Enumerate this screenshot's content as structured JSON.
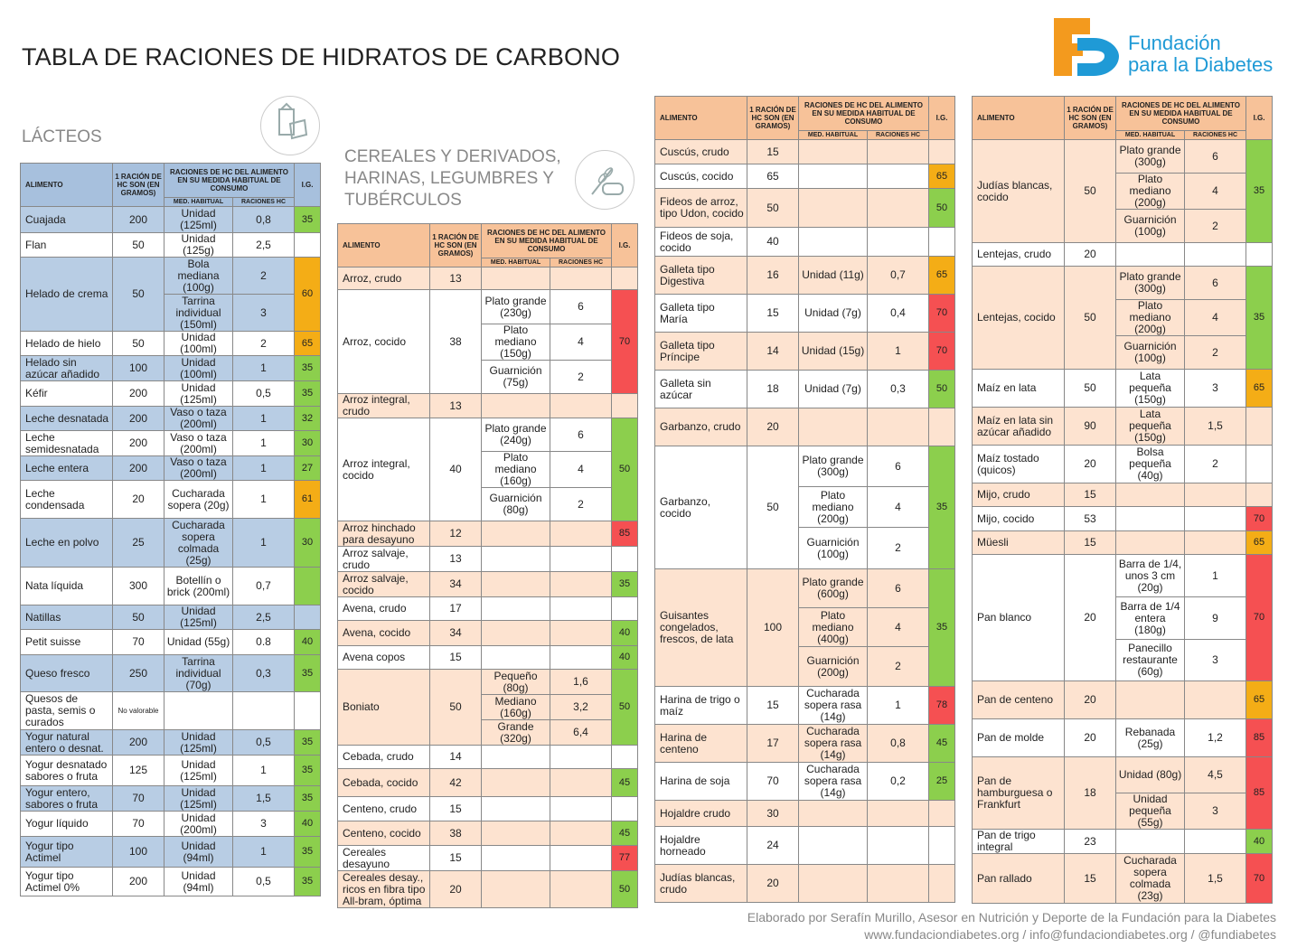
{
  "title": "TABLA DE RACIONES DE HIDRATOS DE CARBONO",
  "brand": {
    "line1": "Fundación",
    "line2": "para la Diabetes",
    "orange": "#f39a1e",
    "blue": "#1f9ad6"
  },
  "headers": {
    "alimento": "ALIMENTO",
    "racion": "1 RACIÓN DE HC SON (EN GRAMOS)",
    "raciones": "RACIONES DE HC DEL ALIMENTO EN SU MEDIDA HABITUAL DE CONSUMO",
    "ig": "I.G.",
    "med": "MED. HABITUAL",
    "rac": "RACIONES HC"
  },
  "sections": {
    "lacteos": "LÁCTEOS",
    "cereales": "CEREALES Y DERIVADOS, HARINAS, LEGUMBRES Y TUBÉRCULOS"
  },
  "icons": [
    "dairy-icon",
    "wheat-bread-icon"
  ],
  "colors": {
    "green": "#8ccf4d",
    "yellow": "#f4ad16",
    "red": "#f55052",
    "blue_header": "#a7c0dd",
    "orange_header": "#f7c299"
  },
  "footer": {
    "line1": "Elaborado por Serafín Murillo, Asesor en Nutrición y Deporte de la Fundación para la Diabetes",
    "line2": "www.fundaciondiabetes.org / info@fundaciondiabetes.org / @fundiabetes"
  },
  "tables": [
    {
      "rows": [
        {
          "n": "Cuajada",
          "g": "200",
          "m": [
            [
              "Unidad (125ml)",
              "0,8"
            ]
          ],
          "ig": "35",
          "c": "g",
          "h": 29
        },
        {
          "n": "Flan",
          "g": "50",
          "m": [
            [
              "Unidad (125g)",
              "2,5"
            ]
          ],
          "ig": "",
          "c": "",
          "h": 27
        },
        {
          "n": "Helado de crema",
          "g": "50",
          "m": [
            [
              "Bola mediana (100g)",
              "2"
            ],
            [
              "Tarrina individual (150ml)",
              "3"
            ]
          ],
          "ig": "60",
          "c": "y",
          "h": 82
        },
        {
          "n": "Helado de hielo",
          "g": "50",
          "m": [
            [
              "Unidad (100ml)",
              "2"
            ]
          ],
          "ig": "65",
          "c": "y",
          "h": 27
        },
        {
          "n": "Helado sin azúcar añadido",
          "g": "100",
          "m": [
            [
              "Unidad (100ml)",
              "1"
            ]
          ],
          "ig": "35",
          "c": "g",
          "h": 28
        },
        {
          "n": "Kéfir",
          "g": "200",
          "m": [
            [
              "Unidad (125ml)",
              "0,5"
            ]
          ],
          "ig": "35",
          "c": "g",
          "h": 28
        },
        {
          "n": "Leche desnatada",
          "g": "200",
          "m": [
            [
              "Vaso o taza (200ml)",
              "1"
            ]
          ],
          "ig": "32",
          "c": "g",
          "h": 27
        },
        {
          "n": "Leche semidesnatada",
          "g": "200",
          "m": [
            [
              "Vaso o taza (200ml)",
              "1"
            ]
          ],
          "ig": "30",
          "c": "g",
          "h": 28
        },
        {
          "n": "Leche entera",
          "g": "200",
          "m": [
            [
              "Vaso o taza (200ml)",
              "1"
            ]
          ],
          "ig": "27",
          "c": "g",
          "h": 27
        },
        {
          "n": "Leche condensada",
          "g": "20",
          "m": [
            [
              "Cucharada sopera (20g)",
              "1"
            ]
          ],
          "ig": "61",
          "c": "y",
          "h": 42
        },
        {
          "n": "Leche en polvo",
          "g": "25",
          "m": [
            [
              "Cucharada sopera colmada (25g)",
              "1"
            ]
          ],
          "ig": "30",
          "c": "g",
          "h": 54
        },
        {
          "n": "Nata líquida",
          "g": "300",
          "m": [
            [
              "Botellín o brick (200ml)",
              "0,7"
            ]
          ],
          "ig": "",
          "c": "g",
          "h": 42
        },
        {
          "n": "Natillas",
          "g": "50",
          "m": [
            [
              "Unidad (125ml)",
              "2,5"
            ]
          ],
          "ig": "",
          "c": "",
          "h": 27
        },
        {
          "n": "Petit suisse",
          "g": "70",
          "m": [
            [
              "Unidad (55g)",
              "0.8"
            ]
          ],
          "ig": "40",
          "c": "g",
          "h": 28
        },
        {
          "n": "Queso fresco",
          "g": "250",
          "m": [
            [
              "Tarrina individual (70g)",
              "0,3"
            ]
          ],
          "ig": "35",
          "c": "g",
          "h": 41
        },
        {
          "n": "Quesos de pasta, semis o curados",
          "g": "No valorable",
          "m": [
            [
              "",
              ""
            ]
          ],
          "ig": "",
          "c": "",
          "h": 42
        },
        {
          "n": "Yogur natural entero o desnat.",
          "g": "200",
          "m": [
            [
              "Unidad (125ml)",
              "0,5"
            ]
          ],
          "ig": "35",
          "c": "g",
          "h": 28
        },
        {
          "n": "Yogur desnatado sabores o fruta",
          "g": "125",
          "m": [
            [
              "Unidad (125ml)",
              "1"
            ]
          ],
          "ig": "35",
          "c": "g",
          "h": 34
        },
        {
          "n": "Yogur entero, sabores o fruta",
          "g": "70",
          "m": [
            [
              "Unidad (125ml)",
              "1,5"
            ]
          ],
          "ig": "35",
          "c": "g",
          "h": 28
        },
        {
          "n": "Yogur líquido",
          "g": "70",
          "m": [
            [
              "Unidad (200ml)",
              "3"
            ]
          ],
          "ig": "40",
          "c": "g",
          "h": 28
        },
        {
          "n": "Yogur tipo Actimel",
          "g": "100",
          "m": [
            [
              "Unidad (94ml)",
              "1"
            ]
          ],
          "ig": "35",
          "c": "g",
          "h": 34
        },
        {
          "n": "Yogur tipo Actimel 0%",
          "g": "200",
          "m": [
            [
              "Unidad (94ml)",
              "0,5"
            ]
          ],
          "ig": "35",
          "c": "g",
          "h": 32
        }
      ]
    },
    {
      "rows": [
        {
          "n": "Arroz, crudo",
          "g": "13",
          "m": [
            [
              "",
              ""
            ]
          ],
          "ig": "",
          "c": "",
          "h": 25
        },
        {
          "n": "Arroz, cocido",
          "g": "38",
          "m": [
            [
              "Plato grande (230g)",
              "6"
            ],
            [
              "Plato mediano (150g)",
              "4"
            ],
            [
              "Guarnición (75g)",
              "2"
            ]
          ],
          "ig": "70",
          "c": "r",
          "h": 113
        },
        {
          "n": "Arroz integral, crudo",
          "g": "13",
          "m": [
            [
              "",
              ""
            ]
          ],
          "ig": "",
          "c": "",
          "h": 26
        },
        {
          "n": "Arroz integral, cocido",
          "g": "40",
          "m": [
            [
              "Plato grande (240g)",
              "6"
            ],
            [
              "Plato mediano (160g)",
              "4"
            ],
            [
              "Guarnición (80g)",
              "2"
            ]
          ],
          "ig": "50",
          "c": "g",
          "h": 111
        },
        {
          "n": "Arroz hinchado para desayuno",
          "g": "12",
          "m": [
            [
              "",
              ""
            ]
          ],
          "ig": "85",
          "c": "r",
          "h": 28
        },
        {
          "n": "Arroz salvaje, crudo",
          "g": "13",
          "m": [
            [
              "",
              ""
            ]
          ],
          "ig": "",
          "c": "",
          "h": 28
        },
        {
          "n": "Arroz salvaje, cocido",
          "g": "34",
          "m": [
            [
              "",
              ""
            ]
          ],
          "ig": "35",
          "c": "g",
          "h": 28
        },
        {
          "n": "Avena, crudo",
          "g": "17",
          "m": [
            [
              "",
              ""
            ]
          ],
          "ig": "",
          "c": "",
          "h": 26
        },
        {
          "n": "Avena, cocido",
          "g": "34",
          "m": [
            [
              "",
              ""
            ]
          ],
          "ig": "40",
          "c": "g",
          "h": 28
        },
        {
          "n": "Avena copos",
          "g": "15",
          "m": [
            [
              "",
              ""
            ]
          ],
          "ig": "40",
          "c": "g",
          "h": 26
        },
        {
          "n": "Boniato",
          "g": "50",
          "m": [
            [
              "Pequeño (80g)",
              "1,6"
            ],
            [
              "Mediano (160g)",
              "3,2"
            ],
            [
              "Grande (320g)",
              "6,4"
            ]
          ],
          "ig": "50",
          "c": "g",
          "h": 84
        },
        {
          "n": "Cebada, crudo",
          "g": "14",
          "m": [
            [
              "",
              ""
            ]
          ],
          "ig": "",
          "c": "",
          "h": 26
        },
        {
          "n": "Cebada, cocido",
          "g": "42",
          "m": [
            [
              "",
              ""
            ]
          ],
          "ig": "45",
          "c": "g",
          "h": 31
        },
        {
          "n": "Centeno, crudo",
          "g": "15",
          "m": [
            [
              "",
              ""
            ]
          ],
          "ig": "",
          "c": "",
          "h": 27
        },
        {
          "n": "Centeno, cocido",
          "g": "38",
          "m": [
            [
              "",
              ""
            ]
          ],
          "ig": "45",
          "c": "g",
          "h": 27
        },
        {
          "n": "Cereales desayuno",
          "g": "15",
          "m": [
            [
              "",
              ""
            ]
          ],
          "ig": "77",
          "c": "r",
          "h": 28
        },
        {
          "n": "Cereales desay., ricos en fibra tipo All-bram, óptima",
          "g": "20",
          "m": [
            [
              "",
              ""
            ]
          ],
          "ig": "50",
          "c": "g",
          "h": 41
        }
      ]
    },
    {
      "rows": [
        {
          "n": "Cuscús, crudo",
          "g": "15",
          "m": [
            [
              "",
              ""
            ]
          ],
          "ig": "",
          "c": "",
          "h": 27
        },
        {
          "n": "Cuscús, cocido",
          "g": "65",
          "m": [
            [
              "",
              ""
            ]
          ],
          "ig": "65",
          "c": "y",
          "h": 27
        },
        {
          "n": "Fideos de arroz, tipo Udon, cocido",
          "g": "50",
          "m": [
            [
              "",
              ""
            ]
          ],
          "ig": "50",
          "c": "g",
          "h": 43
        },
        {
          "n": "Fideos de soja, cocido",
          "g": "40",
          "m": [
            [
              "",
              ""
            ]
          ],
          "ig": "",
          "c": "",
          "h": 32
        },
        {
          "n": "Galleta tipo Digestiva",
          "g": "16",
          "m": [
            [
              "Unidad (11g)",
              "0,7"
            ]
          ],
          "ig": "65",
          "c": "y",
          "h": 42
        },
        {
          "n": "Galleta tipo María",
          "g": "15",
          "m": [
            [
              "Unidad (7g)",
              "0,4"
            ]
          ],
          "ig": "70",
          "c": "r",
          "h": 42
        },
        {
          "n": "Galleta tipo Príncipe",
          "g": "14",
          "m": [
            [
              "Unidad (15g)",
              "1"
            ]
          ],
          "ig": "70",
          "c": "r",
          "h": 42
        },
        {
          "n": "Galleta sin azúcar",
          "g": "18",
          "m": [
            [
              "Unidad (7g)",
              "0,3"
            ]
          ],
          "ig": "50",
          "c": "g",
          "h": 42
        },
        {
          "n": "Garbanzo, crudo",
          "g": "20",
          "m": [
            [
              "",
              ""
            ]
          ],
          "ig": "",
          "c": "",
          "h": 42
        },
        {
          "n": "Garbanzo, cocido",
          "g": "50",
          "m": [
            [
              "Plato grande (300g)",
              "6"
            ],
            [
              "Plato mediano (200g)",
              "4"
            ],
            [
              "Guarnición (100g)",
              "2"
            ]
          ],
          "ig": "35",
          "c": "g",
          "h": 136
        },
        {
          "n": "Guisantes congelados, frescos, de lata",
          "g": "100",
          "m": [
            [
              "Plato grande (600g)",
              "6"
            ],
            [
              "Plato mediano (400g)",
              "4"
            ],
            [
              "Guarnición (200g)",
              "2"
            ]
          ],
          "ig": "35",
          "c": "g",
          "h": 130
        },
        {
          "n": "Harina de trigo o maíz",
          "g": "15",
          "m": [
            [
              "Cucharada sopera rasa (14g)",
              "1"
            ]
          ],
          "ig": "78",
          "c": "r",
          "h": 42
        },
        {
          "n": "Harina de centeno",
          "g": "17",
          "m": [
            [
              "Cucharada sopera rasa (14g)",
              "0,8"
            ]
          ],
          "ig": "45",
          "c": "g",
          "h": 42
        },
        {
          "n": "Harina de soja",
          "g": "70",
          "m": [
            [
              "Cucharada sopera rasa (14g)",
              "0,2"
            ]
          ],
          "ig": "25",
          "c": "g",
          "h": 42
        },
        {
          "n": "Hojaldre crudo",
          "g": "30",
          "m": [
            [
              "",
              ""
            ]
          ],
          "ig": "",
          "c": "",
          "h": 29
        },
        {
          "n": "Hojaldre horneado",
          "g": "24",
          "m": [
            [
              "",
              ""
            ]
          ],
          "ig": "",
          "c": "",
          "h": 42
        },
        {
          "n": "Judías blancas, crudo",
          "g": "20",
          "m": [
            [
              "",
              ""
            ]
          ],
          "ig": "",
          "c": "",
          "h": 42
        }
      ]
    },
    {
      "rows": [
        {
          "n": "Judías blancas, cocido",
          "g": "50",
          "m": [
            [
              "Plato grande (300g)",
              "6"
            ],
            [
              "Plato mediano (200g)",
              "4"
            ],
            [
              "Guarnición (100g)",
              "2"
            ]
          ],
          "ig": "35",
          "c": "g",
          "h": 111
        },
        {
          "n": "Lentejas, crudo",
          "g": "20",
          "m": [
            [
              "",
              ""
            ]
          ],
          "ig": "",
          "c": "",
          "h": 26
        },
        {
          "n": "Lentejas, cocido",
          "g": "50",
          "m": [
            [
              "Plato grande (300g)",
              "6"
            ],
            [
              "Plato mediano (200g)",
              "4"
            ],
            [
              "Guarnición (100g)",
              "2"
            ]
          ],
          "ig": "35",
          "c": "g",
          "h": 111
        },
        {
          "n": "Maíz en lata",
          "g": "50",
          "m": [
            [
              "Lata pequeña (150g)",
              "3"
            ]
          ],
          "ig": "65",
          "c": "y",
          "h": 42
        },
        {
          "n": "Maíz en lata sin azúcar añadido",
          "g": "90",
          "m": [
            [
              "Lata pequeña (150g)",
              "1,5"
            ]
          ],
          "ig": "",
          "c": "",
          "h": 42
        },
        {
          "n": "Maíz tostado (quicos)",
          "g": "20",
          "m": [
            [
              "Bolsa pequeña (40g)",
              "2"
            ]
          ],
          "ig": "",
          "c": "",
          "h": 42
        },
        {
          "n": "Mijo, crudo",
          "g": "15",
          "m": [
            [
              "",
              ""
            ]
          ],
          "ig": "",
          "c": "",
          "h": 26
        },
        {
          "n": "Mijo, cocido",
          "g": "53",
          "m": [
            [
              "",
              ""
            ]
          ],
          "ig": "70",
          "c": "r",
          "h": 27
        },
        {
          "n": "Müesli",
          "g": "15",
          "m": [
            [
              "",
              ""
            ]
          ],
          "ig": "65",
          "c": "y",
          "h": 26
        },
        {
          "n": "Pan blanco",
          "g": "20",
          "m": [
            [
              "Barra de 1/4, unos 3 cm (20g)",
              "1"
            ],
            [
              "Barra de 1/4 entera (180g)",
              "9"
            ],
            [
              "Panecillo restaurante (60g)",
              "3"
            ]
          ],
          "ig": "70",
          "c": "r",
          "h": 140
        },
        {
          "n": "Pan de centeno",
          "g": "20",
          "m": [
            [
              "",
              ""
            ]
          ],
          "ig": "65",
          "c": "y",
          "h": 42
        },
        {
          "n": "Pan de molde",
          "g": "20",
          "m": [
            [
              "Rebanada (25g)",
              "1,2"
            ]
          ],
          "ig": "85",
          "c": "r",
          "h": 42
        },
        {
          "n": "Pan de hamburguesa o Frankfurt",
          "g": "18",
          "m": [
            [
              "Unidad (80g)",
              "4,5"
            ],
            [
              "Unidad pequeña (55g)",
              "3"
            ]
          ],
          "ig": "85",
          "c": "r",
          "h": 80
        },
        {
          "n": "Pan de trigo integral",
          "g": "23",
          "m": [
            [
              "",
              ""
            ]
          ],
          "ig": "40",
          "c": "g",
          "h": 27
        },
        {
          "n": "Pan rallado",
          "g": "15",
          "m": [
            [
              "Cucharada sopera colmada (23g)",
              "1,5"
            ]
          ],
          "ig": "70",
          "c": "r",
          "h": 55
        }
      ]
    }
  ]
}
